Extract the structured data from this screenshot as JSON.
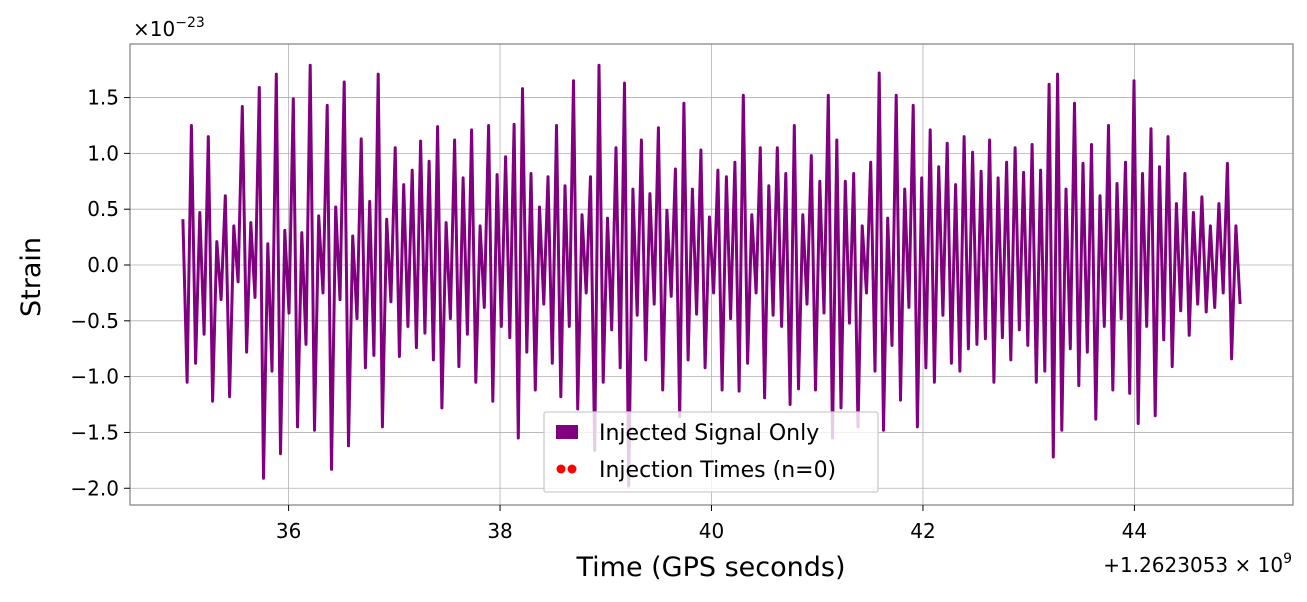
{
  "chart_data": {
    "type": "line",
    "xlabel": "Time (GPS seconds)",
    "ylabel": "Strain",
    "x_offset_label": "+1.2623053 × 10",
    "x_offset_exponent": "9",
    "y_multiplier_label": "×10",
    "y_multiplier_exponent": "−23",
    "xlim": [
      34.5,
      45.5
    ],
    "ylim": [
      -2.15,
      1.98
    ],
    "x_ticks": [
      36,
      38,
      40,
      42,
      44
    ],
    "x_tick_labels": [
      "36",
      "38",
      "40",
      "42",
      "44"
    ],
    "y_ticks": [
      -2.0,
      -1.5,
      -1.0,
      -0.5,
      0.0,
      0.5,
      1.0,
      1.5
    ],
    "y_tick_labels": [
      "−2.0",
      "−1.5",
      "−1.0",
      "−0.5",
      "0.0",
      "0.5",
      "1.0",
      "1.5"
    ],
    "grid": true,
    "legend_position": "bottom-center",
    "series": [
      {
        "name": "Injected Signal Only",
        "color": "#800080",
        "x_start": 35.0,
        "x_end": 45.0,
        "values": [
          0.41,
          -1.05,
          1.25,
          -0.88,
          0.47,
          -0.62,
          1.15,
          -1.22,
          0.21,
          -0.31,
          0.62,
          -1.18,
          0.35,
          -0.15,
          1.42,
          -0.78,
          0.38,
          -0.29,
          1.59,
          -1.91,
          0.19,
          -0.95,
          1.71,
          -1.69,
          0.31,
          -0.43,
          1.49,
          -1.45,
          0.29,
          -0.71,
          1.79,
          -1.48,
          0.44,
          -0.25,
          1.43,
          -1.83,
          0.52,
          -0.31,
          1.64,
          -1.62,
          0.26,
          -0.48,
          1.13,
          -0.92,
          0.57,
          -0.81,
          1.71,
          -1.45,
          0.41,
          -0.33,
          1.05,
          -0.82,
          0.72,
          -0.55,
          0.85,
          -0.74,
          1.11,
          -0.61,
          0.93,
          -0.85,
          1.24,
          -1.28,
          0.38,
          -0.48,
          1.12,
          -0.91,
          0.78,
          -0.62,
          1.21,
          -1.05,
          0.35,
          -0.38,
          1.25,
          -1.22,
          0.81,
          -0.55,
          0.97,
          -0.65,
          1.26,
          -1.55,
          1.58,
          -0.78,
          0.82,
          -1.12,
          0.52,
          -0.35,
          0.79,
          -0.88,
          1.25,
          -1.18,
          0.71,
          -0.55,
          1.65,
          -1.29,
          0.45,
          -0.25,
          0.79,
          -1.66,
          1.79,
          -1.05,
          0.42,
          -0.58,
          1.05,
          -0.92,
          1.63,
          -1.98,
          0.68,
          -0.45,
          1.12,
          -0.85,
          0.64,
          -0.35,
          1.23,
          -1.12,
          0.49,
          -0.28,
          0.86,
          -1.36,
          1.45,
          -0.85,
          0.68,
          -0.44,
          1.03,
          -0.92,
          0.43,
          -0.25,
          0.85,
          -1.12,
          0.79,
          -0.48,
          0.92,
          -1.13,
          1.52,
          -0.88,
          0.45,
          -0.25,
          1.05,
          -1.19,
          0.71,
          -0.45,
          1.05,
          -0.55,
          0.82,
          -1.25,
          1.25,
          -1.11,
          0.45,
          -0.35,
          0.98,
          -1.12,
          0.75,
          -0.43,
          1.52,
          -1.55,
          1.12,
          -1.28,
          0.75,
          -0.52,
          0.82,
          -1.45,
          0.35,
          -0.25,
          0.92,
          -0.95,
          1.72,
          -1.48,
          0.42,
          -0.72,
          1.52,
          -1.21,
          0.68,
          -0.38,
          1.43,
          -1.45,
          0.78,
          -0.92,
          1.21,
          -1.05,
          0.88,
          -0.45,
          1.09,
          -0.88,
          0.72,
          -0.95,
          1.15,
          -0.75,
          1.01,
          -0.71,
          0.84,
          -0.66,
          1.12,
          -1.05,
          0.78,
          -0.65,
          0.92,
          -0.85,
          1.05,
          -0.58,
          0.83,
          -0.72,
          1.08,
          -1.05,
          0.85,
          -0.95,
          1.62,
          -1.72,
          1.71,
          -1.48,
          0.68,
          -0.75,
          1.45,
          -1.08,
          0.91,
          -0.78,
          1.08,
          -1.38,
          0.62,
          -0.55,
          1.25,
          -1.12,
          0.73,
          -0.48,
          0.92,
          -1.15,
          1.65,
          -1.42,
          0.82,
          -0.55,
          1.22,
          -1.35,
          0.88,
          -0.67,
          1.15,
          -0.91,
          0.55,
          -0.41,
          0.82,
          -0.63,
          0.47,
          -0.35,
          0.61,
          -0.42,
          0.35,
          -0.38,
          0.55,
          -0.25,
          0.91,
          -0.84,
          0.35,
          -0.35
        ]
      },
      {
        "name": "Injection Times (n=0)",
        "color": "#ff0000",
        "values": []
      }
    ],
    "legend": [
      {
        "label": "Injected Signal Only",
        "marker": "patch",
        "color": "#800080"
      },
      {
        "label": "Injection Times (n=0)",
        "marker": "dots",
        "color": "#ff0000"
      }
    ]
  }
}
